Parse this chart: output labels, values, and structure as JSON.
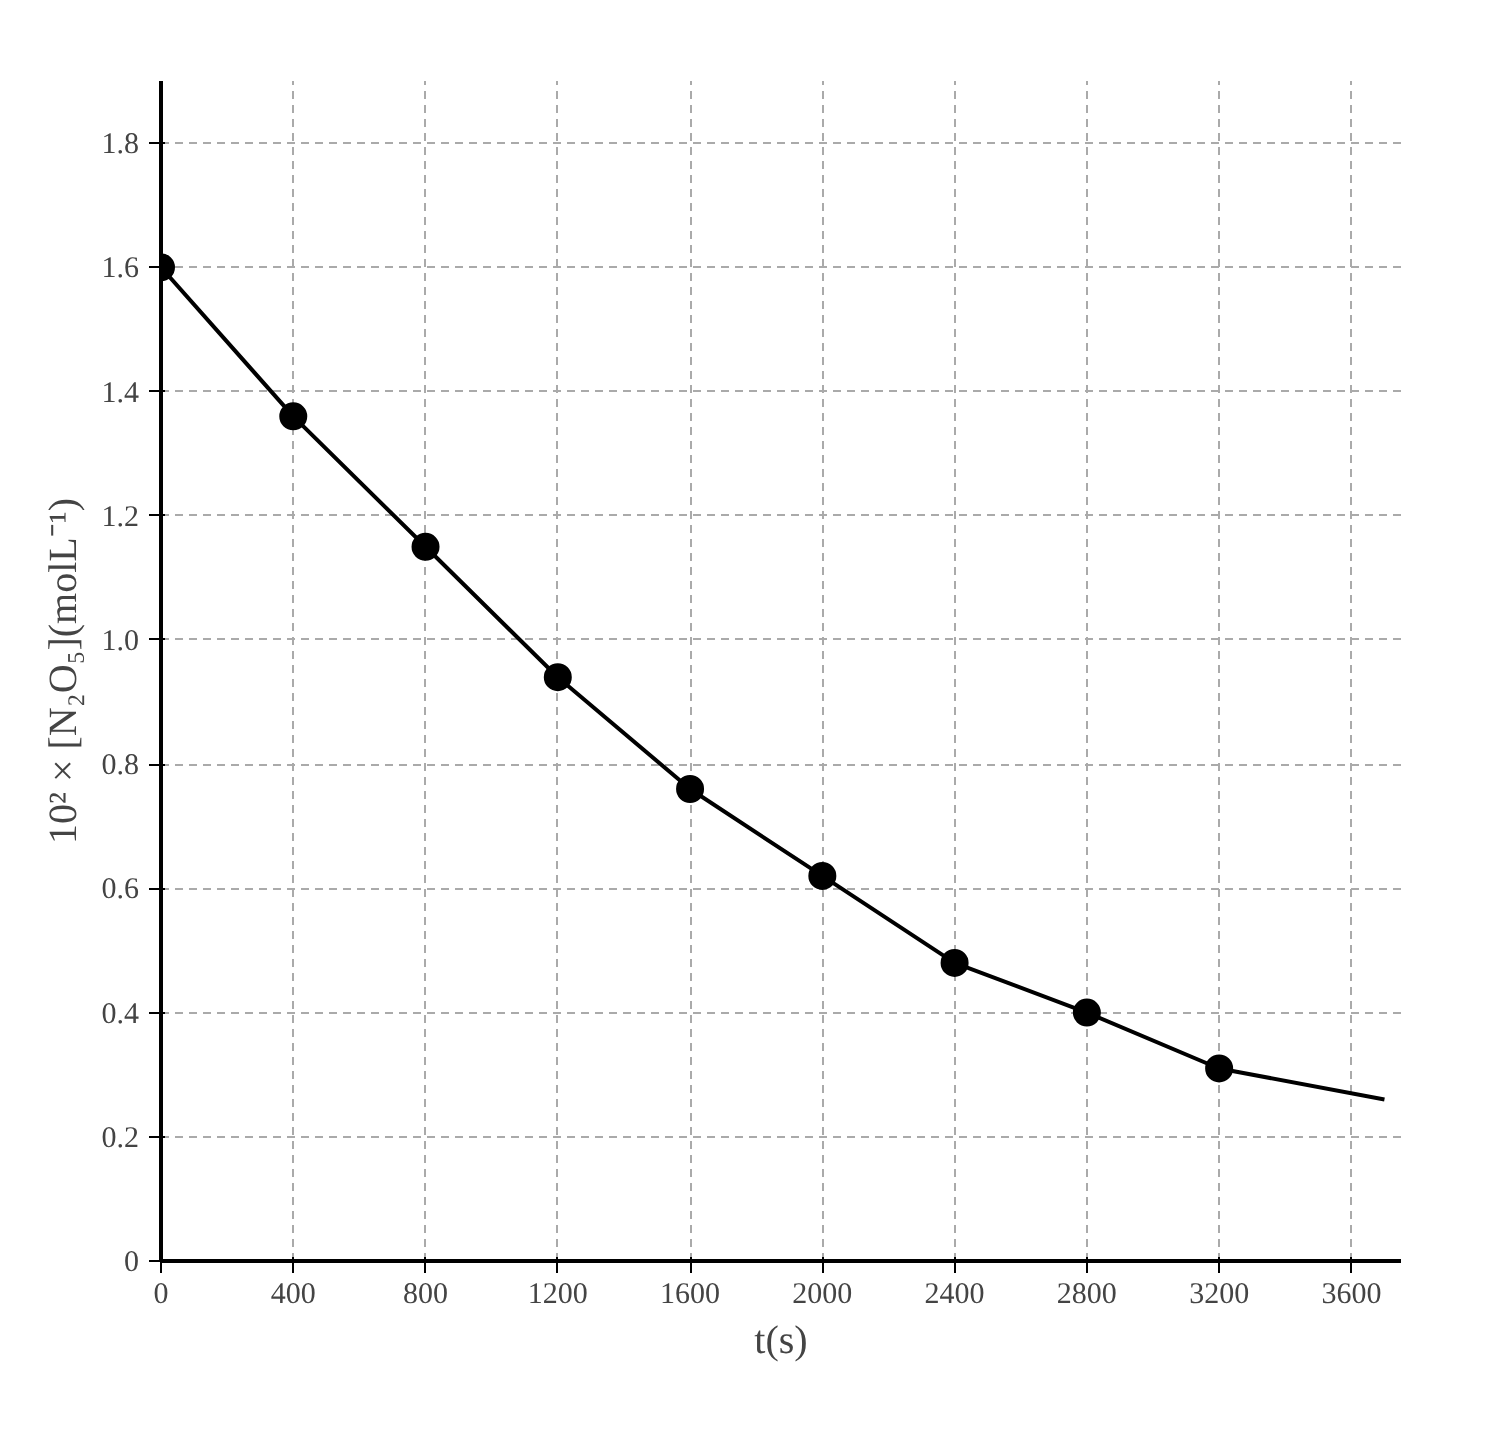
{
  "chart_data": {
    "type": "scatter",
    "xlabel": "t(s)",
    "ylabel": "10² × [N₂O₅](molL⁻¹)",
    "xlim": [
      0,
      3750
    ],
    "xticks": [
      0,
      400,
      800,
      1200,
      1600,
      2000,
      2400,
      2800,
      3200,
      3600
    ],
    "ylim": [
      0,
      1.9
    ],
    "yticks": [
      0,
      0.2,
      0.4,
      0.6,
      0.8,
      {
        "value": 1.0,
        "label": "1.0"
      },
      1.2,
      1.4,
      1.6,
      1.8
    ],
    "grid": true,
    "marker": "circle",
    "series": [
      {
        "color": "#000000",
        "x": [
          0,
          400,
          800,
          1200,
          1600,
          2000,
          2400,
          2800,
          3200
        ],
        "values": [
          1.6,
          1.36,
          1.15,
          0.94,
          0.76,
          0.62,
          0.48,
          0.4,
          0.31
        ]
      },
      {
        "type": "line",
        "color": "#000000",
        "marker": "none",
        "x": [
          0,
          400,
          800,
          1200,
          1600,
          2000,
          2400,
          2800,
          3200,
          3700
        ],
        "values": [
          1.6,
          1.36,
          1.15,
          0.94,
          0.76,
          0.62,
          0.48,
          0.4,
          0.31,
          0.26
        ]
      }
    ]
  }
}
